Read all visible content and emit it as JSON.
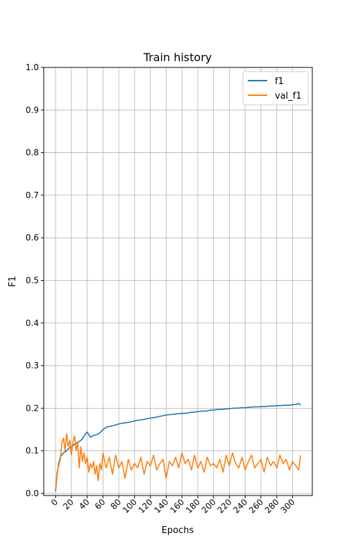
{
  "chart_data": {
    "type": "line",
    "title": "Train history",
    "xlabel": "Epochs",
    "ylabel": "F1",
    "xlim": [
      -15,
      325
    ],
    "ylim": [
      -0.005,
      1.0
    ],
    "xticks": [
      0,
      20,
      40,
      60,
      80,
      100,
      120,
      140,
      160,
      180,
      200,
      220,
      240,
      260,
      280,
      300
    ],
    "yticks": [
      0.0,
      0.1,
      0.2,
      0.3,
      0.4,
      0.5,
      0.6,
      0.7,
      0.8,
      0.9,
      1.0
    ],
    "ytick_labels": [
      "0.0",
      "0.1",
      "0.2",
      "0.3",
      "0.4",
      "0.5",
      "0.6",
      "0.7",
      "0.8",
      "0.9",
      "1.0"
    ],
    "grid": true,
    "legend_position": "top-right",
    "series": [
      {
        "name": "f1",
        "color": "#1f77b4",
        "x": [
          0,
          2,
          4,
          6,
          8,
          10,
          14,
          18,
          22,
          26,
          30,
          34,
          36,
          38,
          40,
          44,
          48,
          52,
          56,
          60,
          65,
          70,
          75,
          80,
          85,
          90,
          95,
          100,
          105,
          110,
          115,
          120,
          125,
          130,
          135,
          140,
          145,
          150,
          155,
          160,
          165,
          170,
          175,
          180,
          185,
          190,
          195,
          200,
          205,
          210,
          215,
          220,
          225,
          230,
          235,
          240,
          245,
          250,
          255,
          260,
          265,
          270,
          275,
          280,
          285,
          290,
          295,
          300,
          305,
          308,
          310
        ],
        "y": [
          0.005,
          0.045,
          0.07,
          0.085,
          0.09,
          0.095,
          0.1,
          0.108,
          0.112,
          0.118,
          0.122,
          0.128,
          0.134,
          0.14,
          0.144,
          0.132,
          0.136,
          0.138,
          0.142,
          0.15,
          0.156,
          0.158,
          0.16,
          0.163,
          0.165,
          0.166,
          0.168,
          0.17,
          0.172,
          0.173,
          0.175,
          0.177,
          0.178,
          0.18,
          0.182,
          0.184,
          0.185,
          0.186,
          0.187,
          0.188,
          0.188,
          0.19,
          0.191,
          0.192,
          0.193,
          0.193,
          0.195,
          0.196,
          0.197,
          0.197,
          0.198,
          0.199,
          0.2,
          0.2,
          0.201,
          0.201,
          0.202,
          0.203,
          0.203,
          0.204,
          0.204,
          0.205,
          0.205,
          0.206,
          0.206,
          0.207,
          0.207,
          0.208,
          0.209,
          0.211,
          0.207
        ]
      },
      {
        "name": "val_f1",
        "color": "#ff7f0e",
        "x": [
          0,
          2,
          4,
          6,
          8,
          10,
          12,
          14,
          16,
          18,
          20,
          22,
          24,
          26,
          28,
          30,
          32,
          34,
          36,
          38,
          40,
          42,
          44,
          46,
          48,
          50,
          52,
          54,
          56,
          58,
          60,
          64,
          68,
          72,
          76,
          80,
          84,
          88,
          92,
          96,
          100,
          104,
          108,
          112,
          116,
          120,
          124,
          128,
          132,
          136,
          140,
          144,
          148,
          152,
          156,
          160,
          164,
          168,
          172,
          176,
          180,
          184,
          188,
          192,
          196,
          200,
          204,
          208,
          212,
          216,
          220,
          224,
          228,
          232,
          236,
          240,
          244,
          248,
          252,
          256,
          260,
          264,
          268,
          272,
          276,
          280,
          284,
          288,
          292,
          296,
          300,
          304,
          308,
          310
        ],
        "y": [
          0.01,
          0.05,
          0.065,
          0.08,
          0.12,
          0.13,
          0.1,
          0.14,
          0.11,
          0.125,
          0.09,
          0.12,
          0.135,
          0.1,
          0.12,
          0.06,
          0.11,
          0.075,
          0.095,
          0.07,
          0.085,
          0.05,
          0.07,
          0.06,
          0.075,
          0.045,
          0.065,
          0.03,
          0.07,
          0.055,
          0.095,
          0.06,
          0.085,
          0.045,
          0.09,
          0.06,
          0.075,
          0.035,
          0.08,
          0.055,
          0.07,
          0.06,
          0.085,
          0.045,
          0.075,
          0.065,
          0.09,
          0.055,
          0.07,
          0.08,
          0.035,
          0.075,
          0.065,
          0.085,
          0.06,
          0.095,
          0.07,
          0.08,
          0.055,
          0.09,
          0.06,
          0.075,
          0.05,
          0.085,
          0.065,
          0.07,
          0.06,
          0.08,
          0.05,
          0.09,
          0.065,
          0.095,
          0.07,
          0.06,
          0.085,
          0.055,
          0.075,
          0.09,
          0.06,
          0.07,
          0.08,
          0.05,
          0.085,
          0.065,
          0.075,
          0.06,
          0.09,
          0.07,
          0.08,
          0.055,
          0.075,
          0.065,
          0.055,
          0.09
        ]
      }
    ]
  }
}
